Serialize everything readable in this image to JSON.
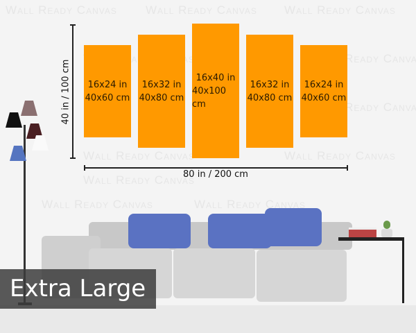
{
  "watermark": "Wall Ready Canvas",
  "panels": [
    {
      "inches": "16x24 in",
      "cm": "40x60 cm"
    },
    {
      "inches": "16x32 in",
      "cm": "40x80 cm"
    },
    {
      "inches": "16x40 in",
      "cm": "40x100 cm"
    },
    {
      "inches": "16x32 in",
      "cm": "40x80 cm"
    },
    {
      "inches": "16x24 in",
      "cm": "40x60 cm"
    }
  ],
  "height_label": "40 in / 100 cm",
  "width_label": "80 in / 200 cm",
  "size_badge": "Extra Large",
  "colors": {
    "panel": "#ff9900",
    "pillow": "#5a72c2",
    "sofa": "#cfcfcf"
  }
}
